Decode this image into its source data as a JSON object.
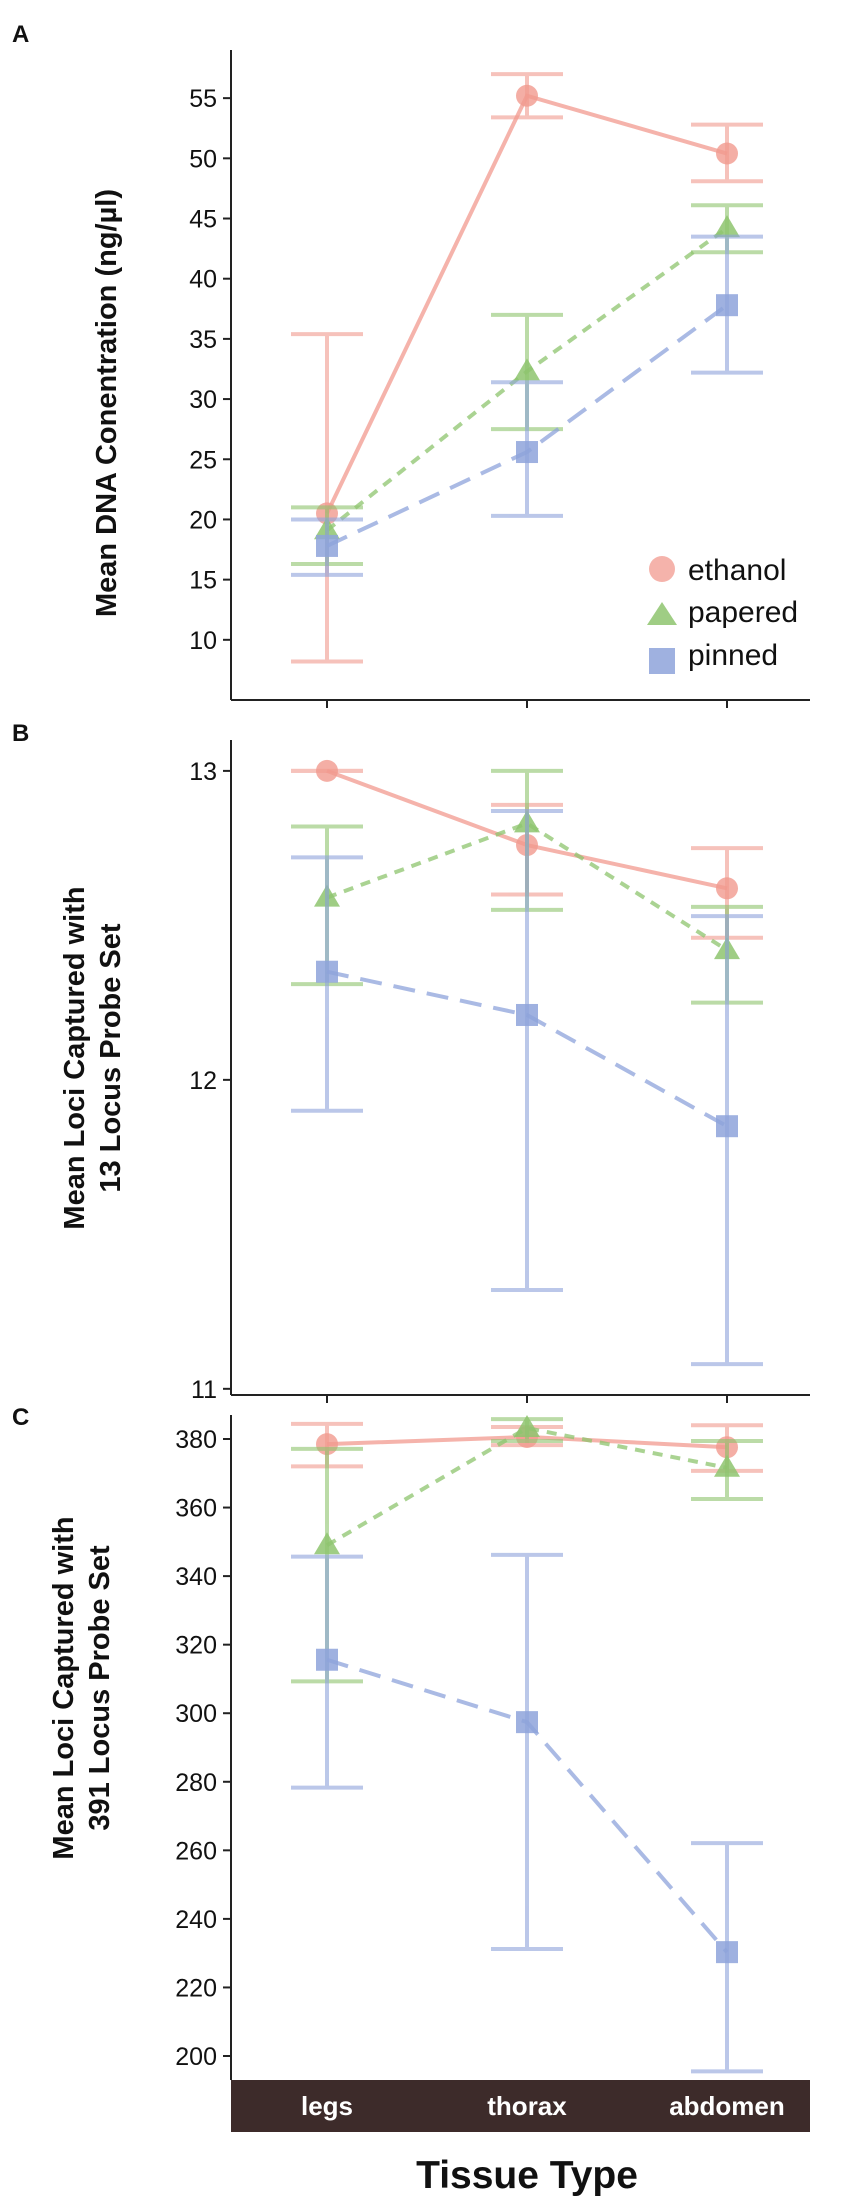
{
  "chart_data": [
    {
      "panel": "A",
      "type": "line",
      "ylabel": "Mean DNA Conentration (ng/µl)",
      "categories": [
        "legs",
        "thorax",
        "abdomen"
      ],
      "ylim": [
        5,
        59
      ],
      "yticks": [
        10,
        15,
        20,
        25,
        30,
        35,
        40,
        45,
        50,
        55
      ],
      "legend": {
        "position": "bottom-right"
      },
      "series": [
        {
          "name": "ethanol",
          "color": "#f19a8f",
          "marker": "circle",
          "dash": "solid",
          "values": [
            20.5,
            55.2,
            50.4
          ],
          "err_low": [
            8.2,
            53.4,
            48.1
          ],
          "err_high": [
            35.4,
            57.0,
            52.8
          ]
        },
        {
          "name": "papered",
          "color": "#8ec46e",
          "marker": "triangle",
          "dash": "short",
          "values": [
            19.1,
            32.3,
            44.2
          ],
          "err_low": [
            16.3,
            27.5,
            42.2
          ],
          "err_high": [
            21.0,
            37.0,
            46.1
          ]
        },
        {
          "name": "pinned",
          "color": "#8ea3db",
          "marker": "square",
          "dash": "long",
          "values": [
            17.8,
            25.6,
            37.8
          ],
          "err_low": [
            15.4,
            20.3,
            32.2
          ],
          "err_high": [
            20.0,
            31.4,
            43.5
          ]
        }
      ]
    },
    {
      "panel": "B",
      "type": "line",
      "ylabel_lines": [
        "Mean Loci Captured with",
        "13 Locus Probe Set"
      ],
      "categories": [
        "legs",
        "thorax",
        "abdomen"
      ],
      "ylim": [
        10.98,
        13.1
      ],
      "yticks": [
        11,
        12,
        13
      ],
      "series": [
        {
          "name": "ethanol",
          "color": "#f19a8f",
          "marker": "circle",
          "dash": "solid",
          "values": [
            13.0,
            12.76,
            12.62
          ],
          "err_low": [
            13.0,
            12.6,
            12.46
          ],
          "err_high": [
            13.0,
            12.89,
            12.75
          ]
        },
        {
          "name": "papered",
          "color": "#8ec46e",
          "marker": "triangle",
          "dash": "short",
          "values": [
            12.59,
            12.83,
            12.42
          ],
          "err_low": [
            12.31,
            12.55,
            12.25
          ],
          "err_high": [
            12.82,
            13.0,
            12.56
          ]
        },
        {
          "name": "pinned",
          "color": "#8ea3db",
          "marker": "square",
          "dash": "long",
          "values": [
            12.35,
            12.21,
            11.85
          ],
          "err_low": [
            11.9,
            11.32,
            11.08
          ],
          "err_high": [
            12.72,
            12.87,
            12.53
          ]
        }
      ]
    },
    {
      "panel": "C",
      "type": "line",
      "ylabel_lines": [
        "Mean Loci Captured with",
        "391 Locus Probe Set"
      ],
      "categories": [
        "legs",
        "thorax",
        "abdomen"
      ],
      "ylim": [
        193,
        387
      ],
      "yticks": [
        200,
        220,
        240,
        260,
        280,
        300,
        320,
        340,
        360,
        380
      ],
      "series": [
        {
          "name": "ethanol",
          "color": "#f19a8f",
          "marker": "circle",
          "dash": "solid",
          "values": [
            378.5,
            380.6,
            377.6
          ],
          "err_low": [
            372.0,
            378.2,
            370.7
          ],
          "err_high": [
            384.4,
            383.5,
            384.0
          ]
        },
        {
          "name": "papered",
          "color": "#8ec46e",
          "marker": "triangle",
          "dash": "short",
          "values": [
            349.0,
            383.2,
            371.6
          ],
          "err_low": [
            309.3,
            379.4,
            362.5
          ],
          "err_high": [
            377.1,
            385.8,
            379.4
          ]
        },
        {
          "name": "pinned",
          "color": "#8ea3db",
          "marker": "square",
          "dash": "long",
          "values": [
            315.6,
            297.4,
            230.3
          ],
          "err_low": [
            278.3,
            231.2,
            195.5
          ],
          "err_high": [
            345.7,
            346.2,
            262.1
          ]
        }
      ]
    }
  ],
  "xlabel": "Tissue Type"
}
